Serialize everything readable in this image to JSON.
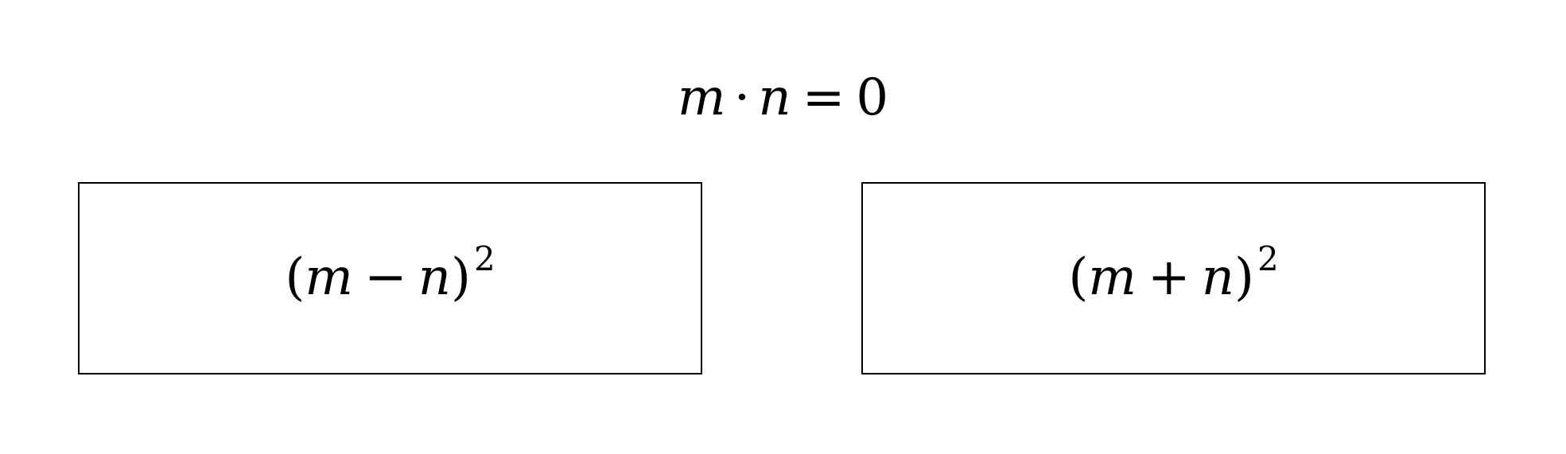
{
  "top_equation": {
    "var_left": "m",
    "operator": "·",
    "var_right": "n",
    "equals": "=",
    "value": "0"
  },
  "boxes": [
    {
      "open_paren": "(",
      "var_left": "m",
      "operator": "−",
      "var_right": "n",
      "close_paren": ")",
      "exponent": "2"
    },
    {
      "open_paren": "(",
      "var_left": "m",
      "operator": "+",
      "var_right": "n",
      "close_paren": ")",
      "exponent": "2"
    }
  ]
}
